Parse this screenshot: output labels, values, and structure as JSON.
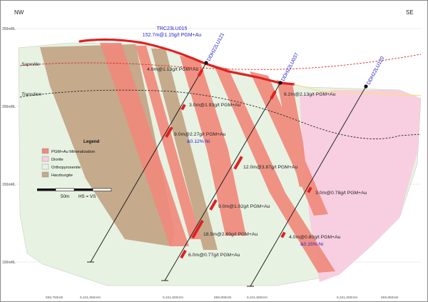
{
  "header": {
    "left_dir": "NW",
    "right_dir": "SE"
  },
  "elevations": [
    "250mRL",
    "200mRL",
    "150mRL",
    "100mRL"
  ],
  "zones": {
    "saprolite": "Saprolite",
    "transition": "Transition"
  },
  "trench": {
    "name": "TRC23LU015",
    "result": "152.7m@1.15g/t PGM+Au"
  },
  "holes": [
    "DDH22LU121",
    "DDH22LU037",
    "DDH22LU120"
  ],
  "intercepts": [
    {
      "text": "4.0m@1.13g/t PGM+Au"
    },
    {
      "text": "6.2m@2.13g/t PGM+Au"
    },
    {
      "text": "3.0m@1.93g/t PGM+Au"
    },
    {
      "text": "9.0m@2.27g/t PGM+Au",
      "ni": "&0.12% Ni"
    },
    {
      "text": "12.0m@3.87g/t PGM+Au"
    },
    {
      "text": "3.0m@0.78g/t PGM+Au"
    },
    {
      "text": "9.0m@1.02g/t PGM+Au"
    },
    {
      "text": "18.5m@2.69g/t PGM+Au"
    },
    {
      "text": "4.0m@0.80g/t PGM+Au",
      "ni": "&0.15% Ni"
    },
    {
      "text": "6.0m@0.77g/t PGM+Au"
    }
  ],
  "legend": {
    "title": "Legend",
    "items": [
      {
        "label": "PGM+Au Mineralization",
        "color": "#f08a7c"
      },
      {
        "label": "Diorite",
        "color": "#f7cfe0"
      },
      {
        "label": "Orthopyroxenite",
        "color": "#e8f2e3"
      },
      {
        "label": "Harzburgite",
        "color": "#c5aa8c"
      }
    ]
  },
  "scale": {
    "label": "50m",
    "ratio": "HS = VS"
  },
  "coords": [
    "659,750mE",
    "9,341,650mN",
    "9,341,600mN",
    "659,800mE",
    "9,341,550mN",
    "9,341,500mN",
    "659,850mE"
  ],
  "colors": {
    "orthopyroxenite": "#e8f2e3",
    "diorite": "#f7cfe0",
    "harzburgite": "#c5aa8c",
    "mineralization": "#f08a7c",
    "trench": "#e02020",
    "hole_label": "#1f1fcc"
  }
}
